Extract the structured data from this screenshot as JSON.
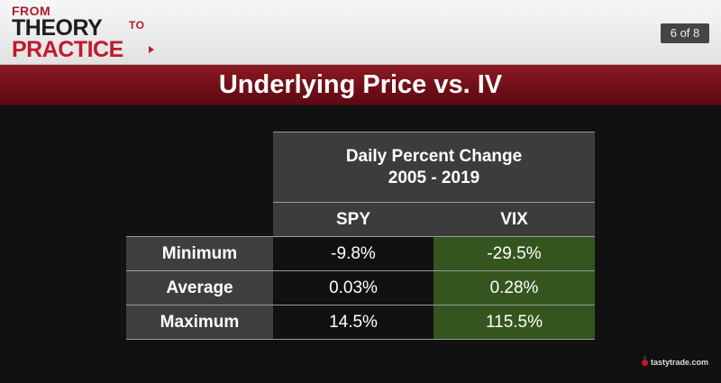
{
  "header": {
    "logo": {
      "line1": "FROM",
      "line2": "THEORY",
      "line2_suffix": "TO",
      "line3": "PRACTICE"
    },
    "page_counter": "6 of 8"
  },
  "title": "Underlying Price vs. IV",
  "table": {
    "heading_line1": "Daily Percent Change",
    "heading_line2": "2005 - 2019",
    "columns": [
      "SPY",
      "VIX"
    ],
    "rows": [
      {
        "label": "Minimum",
        "spy": "-9.8%",
        "vix": "-29.5%"
      },
      {
        "label": "Average",
        "spy": "0.03%",
        "vix": "0.28%"
      },
      {
        "label": "Maximum",
        "spy": "14.5%",
        "vix": "115.5%"
      }
    ]
  },
  "brand": "tastytrade.com",
  "colors": {
    "title_bar": "#6e0e17",
    "accent_red": "#c0192d",
    "vix_cell": "#34561e",
    "header_cell": "#3c3c3c"
  }
}
